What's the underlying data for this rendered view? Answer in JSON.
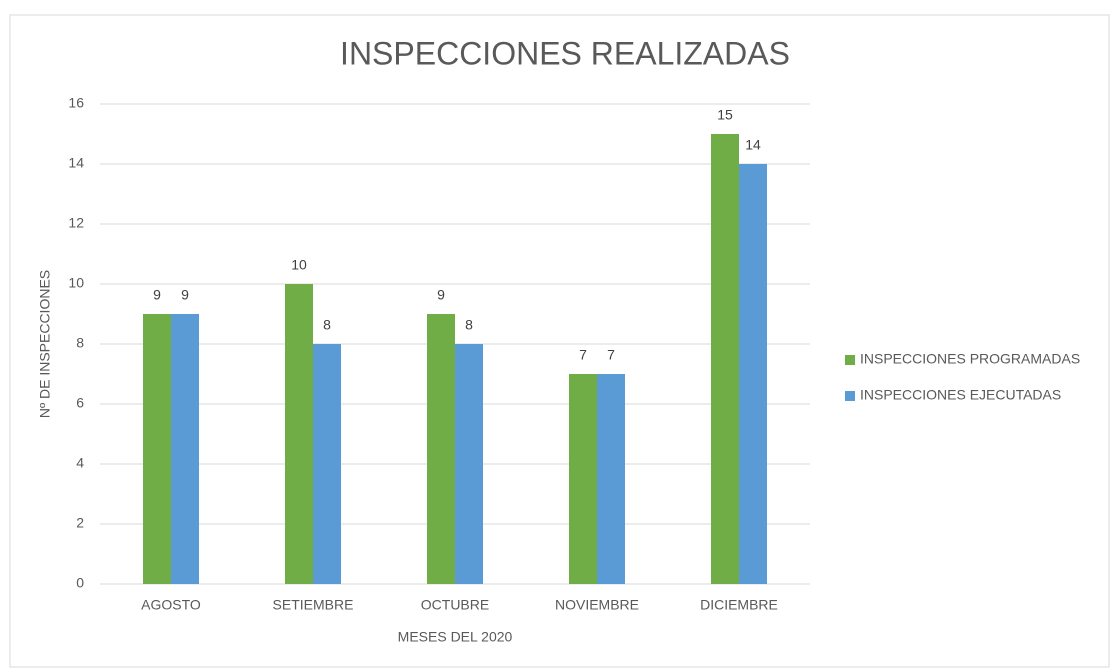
{
  "chart_data": {
    "type": "bar",
    "title": "INSPECCIONES REALIZADAS",
    "x_label": "MESES DEL 2020",
    "y_label": "Nº DE INSPECCIONES",
    "categories": [
      "AGOSTO",
      "SETIEMBRE",
      "OCTUBRE",
      "NOVIEMBRE",
      "DICIEMBRE"
    ],
    "series": [
      {
        "name": "INSPECCIONES PROGRAMADAS",
        "color": "#70ad47",
        "values": [
          9,
          10,
          9,
          7,
          15
        ]
      },
      {
        "name": "INSPECCIONES EJECUTADAS",
        "color": "#5b9bd5",
        "values": [
          9,
          8,
          8,
          7,
          14
        ]
      }
    ],
    "ylim": [
      0,
      16
    ],
    "yticks": [
      0,
      2,
      4,
      6,
      8,
      10,
      12,
      14,
      16
    ],
    "grid": true,
    "legend": "right"
  }
}
